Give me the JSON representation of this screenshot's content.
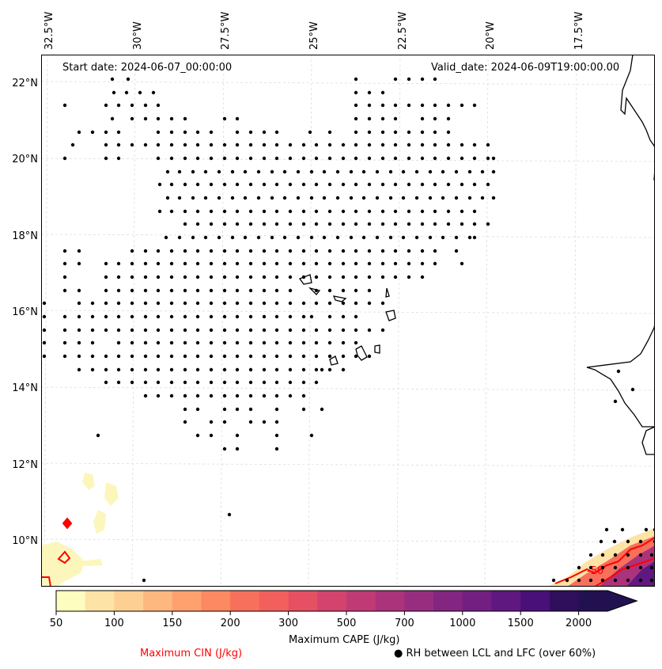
{
  "map": {
    "start_date_label": "Start date: 2024-06-07_00:00:00",
    "valid_date_label": "Valid_date: 2024-06-09T19:00:00.00",
    "lon_ticks": [
      "32.5°W",
      "30°W",
      "27.5°W",
      "25°W",
      "22.5°W",
      "20°W",
      "17.5°W"
    ],
    "lat_ticks": [
      "22°N",
      "20°N",
      "18°N",
      "16°N",
      "14°N",
      "12°N",
      "10°N"
    ],
    "extent": {
      "lon_min": -32.6,
      "lon_max": -15.6,
      "lat_min": 9.0,
      "lat_max": 22.7
    },
    "cin_contour_label": "-50",
    "gridlines": true
  },
  "colorbar": {
    "title": "Maximum CAPE (J/kg)",
    "tick_labels": [
      "50",
      "100",
      "150",
      "200",
      "300",
      "500",
      "700",
      "1000",
      "1500",
      "2000"
    ],
    "levels": [
      50,
      75,
      100,
      125,
      150,
      175,
      200,
      250,
      300,
      400,
      500,
      600,
      700,
      800,
      1000,
      1250,
      1500,
      1750,
      2000
    ],
    "colors": [
      "#fcfdbf",
      "#fde3a5",
      "#fecf92",
      "#feb77e",
      "#fea16e",
      "#fc8961",
      "#f7705c",
      "#f1605d",
      "#e55063",
      "#d3436e",
      "#c03a76",
      "#ab337c",
      "#982d80",
      "#832681",
      "#721f81",
      "#5f187f",
      "#4a1079",
      "#2f0f5c",
      "#221150"
    ],
    "extend": "max"
  },
  "legend": {
    "cin_label": "Maximum CIN (J/kg)",
    "cin_color": "#ff0000",
    "rh_marker": "●",
    "rh_label": "RH between LCL and LFC (over 60%)"
  }
}
